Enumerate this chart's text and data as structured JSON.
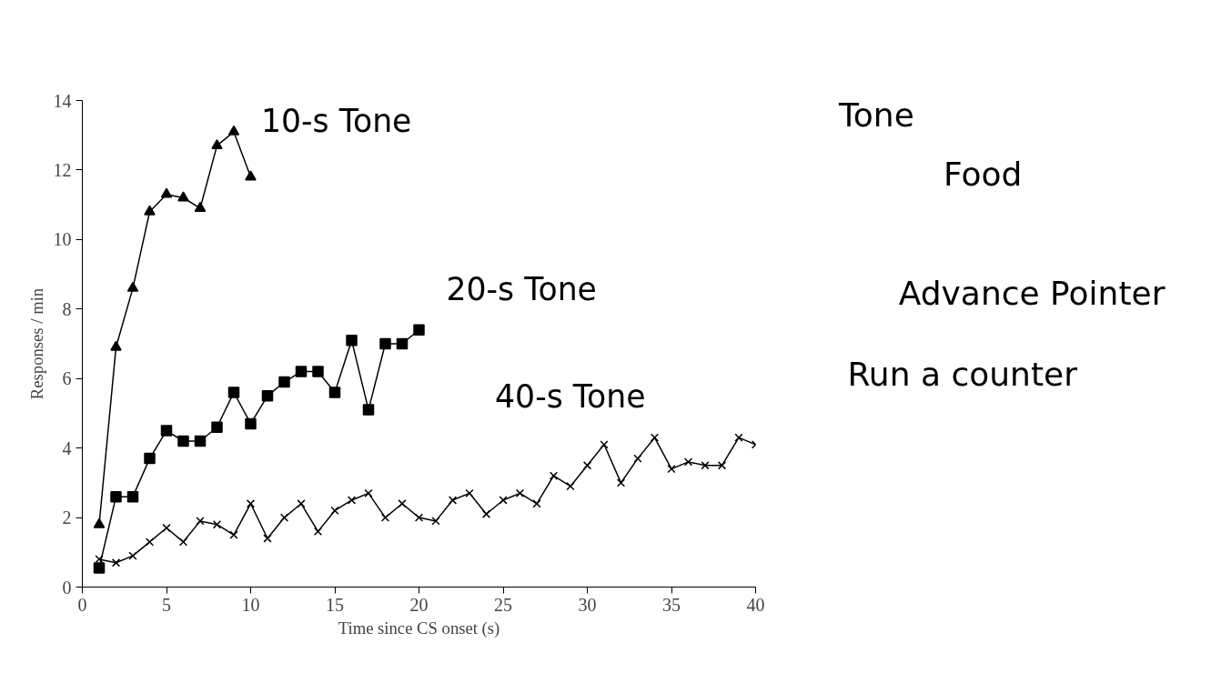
{
  "chart_data": {
    "type": "line",
    "xlabel": "Time since CS onset (s)",
    "ylabel": "Responses / min",
    "xlim": [
      0,
      40
    ],
    "ylim": [
      0,
      14
    ],
    "xticks": [
      0,
      5,
      10,
      15,
      20,
      25,
      30,
      35,
      40
    ],
    "yticks": [
      0,
      2,
      4,
      6,
      8,
      10,
      12,
      14
    ],
    "grid": false,
    "series": [
      {
        "name": "10-s Tone",
        "color": "#000000",
        "marker": "triangle",
        "x": [
          1,
          2,
          3,
          4,
          5,
          6,
          7,
          8,
          9,
          10
        ],
        "values": [
          1.8,
          6.9,
          8.6,
          10.8,
          11.3,
          11.2,
          10.9,
          12.7,
          13.1,
          11.8
        ]
      },
      {
        "name": "20-s Tone",
        "color": "#000000",
        "marker": "square",
        "x": [
          1,
          2,
          3,
          4,
          5,
          6,
          7,
          8,
          9,
          10,
          11,
          12,
          13,
          14,
          15,
          16,
          17,
          18,
          19,
          20
        ],
        "values": [
          0.55,
          2.6,
          2.6,
          3.7,
          4.5,
          4.2,
          4.2,
          4.6,
          5.6,
          4.7,
          5.5,
          5.9,
          6.2,
          6.2,
          5.6,
          7.1,
          5.1,
          7.0,
          7.0,
          7.4
        ]
      },
      {
        "name": "40-s Tone",
        "color": "#000000",
        "marker": "cross",
        "x": [
          1,
          2,
          3,
          4,
          5,
          6,
          7,
          8,
          9,
          10,
          11,
          12,
          13,
          14,
          15,
          16,
          17,
          18,
          19,
          20,
          21,
          22,
          23,
          24,
          25,
          26,
          27,
          28,
          29,
          30,
          31,
          32,
          33,
          34,
          35,
          36,
          37,
          38,
          39,
          40
        ],
        "values": [
          0.8,
          0.7,
          0.9,
          1.3,
          1.7,
          1.3,
          1.9,
          1.8,
          1.5,
          2.4,
          1.4,
          2.0,
          2.4,
          1.6,
          2.2,
          2.5,
          2.7,
          2.0,
          2.4,
          2.0,
          1.9,
          2.5,
          2.7,
          2.1,
          2.5,
          2.7,
          2.4,
          3.2,
          2.9,
          3.5,
          4.1,
          3.0,
          3.7,
          4.3,
          3.4,
          3.6,
          3.5,
          3.5,
          4.3,
          4.1
        ]
      }
    ],
    "annotations": [
      "Tone",
      "Food",
      "Advance Pointer",
      "Run a counter"
    ]
  }
}
